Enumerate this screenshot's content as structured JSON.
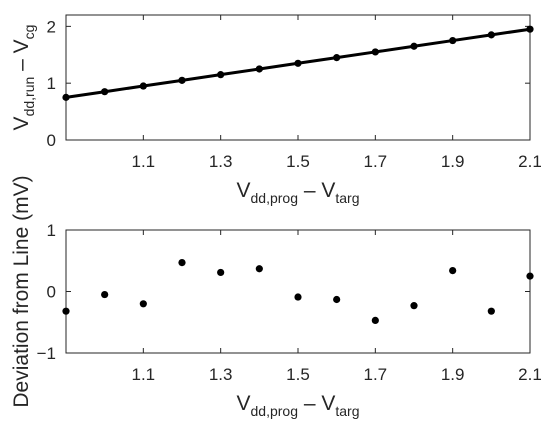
{
  "chart_data": [
    {
      "type": "line",
      "xlabel": {
        "main": "V",
        "sub": "dd,prog",
        "mid": " – V",
        "sub2": "targ"
      },
      "ylabel": {
        "main": "V",
        "sub": "dd,run",
        "mid": " – V",
        "sub2": "cg"
      },
      "xlim": [
        0.9,
        2.1
      ],
      "ylim": [
        0,
        2.2
      ],
      "xticks": [
        1.1,
        1.3,
        1.5,
        1.7,
        1.9,
        2.1
      ],
      "xtick_labels": [
        "1.1",
        "1.3",
        "1.5",
        "1.7",
        "1.9",
        "2.1"
      ],
      "yticks": [
        0,
        1,
        2
      ],
      "ytick_labels": [
        "0",
        "1",
        "2"
      ],
      "grid": false,
      "series": [
        {
          "x": [
            0.9,
            1.0,
            1.1,
            1.2,
            1.3,
            1.4,
            1.5,
            1.6,
            1.7,
            1.8,
            1.9,
            2.0,
            2.1
          ],
          "y": [
            0.75,
            0.85,
            0.95,
            1.05,
            1.15,
            1.25,
            1.35,
            1.45,
            1.55,
            1.65,
            1.75,
            1.85,
            1.95
          ],
          "color": "#000000",
          "markers": true
        }
      ]
    },
    {
      "type": "scatter",
      "xlabel": {
        "main": "V",
        "sub": "dd,prog",
        "mid": " – V",
        "sub2": "targ"
      },
      "ylabel": "Deviation from Line (mV)",
      "xlim": [
        0.9,
        2.1
      ],
      "ylim": [
        -1,
        1
      ],
      "xticks": [
        1.1,
        1.3,
        1.5,
        1.7,
        1.9,
        2.1
      ],
      "xtick_labels": [
        "1.1",
        "1.3",
        "1.5",
        "1.7",
        "1.9",
        "2.1"
      ],
      "yticks": [
        -1,
        0,
        1
      ],
      "ytick_labels": [
        "−1",
        "0",
        "1"
      ],
      "grid": false,
      "series": [
        {
          "x": [
            0.9,
            1.0,
            1.1,
            1.2,
            1.3,
            1.4,
            1.5,
            1.6,
            1.7,
            1.8,
            1.9,
            2.0,
            2.1
          ],
          "y": [
            -0.32,
            -0.05,
            -0.2,
            0.47,
            0.31,
            0.37,
            -0.09,
            -0.13,
            -0.47,
            -0.23,
            0.34,
            -0.32,
            0.25
          ],
          "color": "#000000"
        }
      ]
    }
  ]
}
